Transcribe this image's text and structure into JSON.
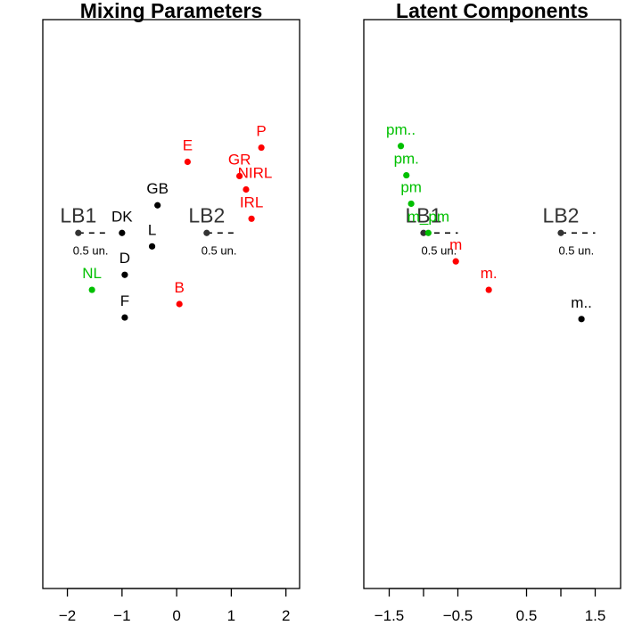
{
  "colors": {
    "black": "#000000",
    "red": "#ff0000",
    "green": "#00c000",
    "ref": "#333333"
  },
  "chart_data": [
    {
      "type": "scatter",
      "title": "Mixing Parameters",
      "xlabel": "",
      "ylabel": "",
      "xlim": [
        -2.45,
        2.25
      ],
      "ylim": [
        -4.5,
        2.7
      ],
      "x_ticks": [
        -2,
        -1,
        0,
        1,
        2
      ],
      "x_tick_labels": [
        "−2",
        "−1",
        "0",
        "1",
        "2"
      ],
      "points": [
        {
          "label": "DK",
          "x": -1.0,
          "y": 0.0,
          "color": "black"
        },
        {
          "label": "GB",
          "x": -0.35,
          "y": 0.35,
          "color": "black"
        },
        {
          "label": "L",
          "x": -0.45,
          "y": -0.17,
          "color": "black"
        },
        {
          "label": "D",
          "x": -0.95,
          "y": -0.53,
          "color": "black"
        },
        {
          "label": "F",
          "x": -0.95,
          "y": -1.07,
          "color": "black"
        },
        {
          "label": "E",
          "x": 0.2,
          "y": 0.9,
          "color": "red"
        },
        {
          "label": "P",
          "x": 1.55,
          "y": 1.08,
          "color": "red"
        },
        {
          "label": "GR",
          "x": 1.15,
          "y": 0.72,
          "color": "red"
        },
        {
          "label": "NIRL",
          "x": 1.27,
          "y": 0.55,
          "color": "red"
        },
        {
          "label": "IRL",
          "x": 1.37,
          "y": 0.18,
          "color": "red"
        },
        {
          "label": "B",
          "x": 0.05,
          "y": -0.9,
          "color": "red"
        },
        {
          "label": "NL",
          "x": -1.55,
          "y": -0.72,
          "color": "green"
        }
      ],
      "reference_points": [
        {
          "label": "LB1",
          "x": -1.8,
          "y": 0.0,
          "unit_label": "0.5 un."
        },
        {
          "label": "LB2",
          "x": 0.55,
          "y": 0.0,
          "unit_label": "0.5 un."
        }
      ]
    },
    {
      "type": "scatter",
      "title": "Latent Components",
      "xlabel": "",
      "ylabel": "",
      "xlim": [
        -1.87,
        1.87
      ],
      "ylim": [
        -4.5,
        2.7
      ],
      "x_ticks": [
        -1.5,
        -1,
        -0.5,
        0.5,
        1,
        1.5
      ],
      "x_tick_labels": [
        "−1.5",
        "",
        "−0.5",
        "0.5",
        "",
        "1.5"
      ],
      "points": [
        {
          "label": "pm..",
          "x": -1.33,
          "y": 1.1,
          "color": "green"
        },
        {
          "label": "pm.",
          "x": -1.25,
          "y": 0.73,
          "color": "green"
        },
        {
          "label": "pm",
          "x": -1.18,
          "y": 0.37,
          "color": "green"
        },
        {
          "label": "m_pm",
          "x": -0.93,
          "y": 0.0,
          "color": "green"
        },
        {
          "label": "m",
          "x": -0.53,
          "y": -0.36,
          "color": "red"
        },
        {
          "label": "m.",
          "x": -0.05,
          "y": -0.72,
          "color": "red"
        },
        {
          "label": "m..",
          "x": 1.3,
          "y": -1.09,
          "color": "black"
        }
      ],
      "reference_points": [
        {
          "label": "LB1",
          "x": -1.0,
          "y": 0.0,
          "unit_label": "0.5 un."
        },
        {
          "label": "LB2",
          "x": 1.0,
          "y": 0.0,
          "unit_label": "0.5 un."
        }
      ]
    }
  ]
}
